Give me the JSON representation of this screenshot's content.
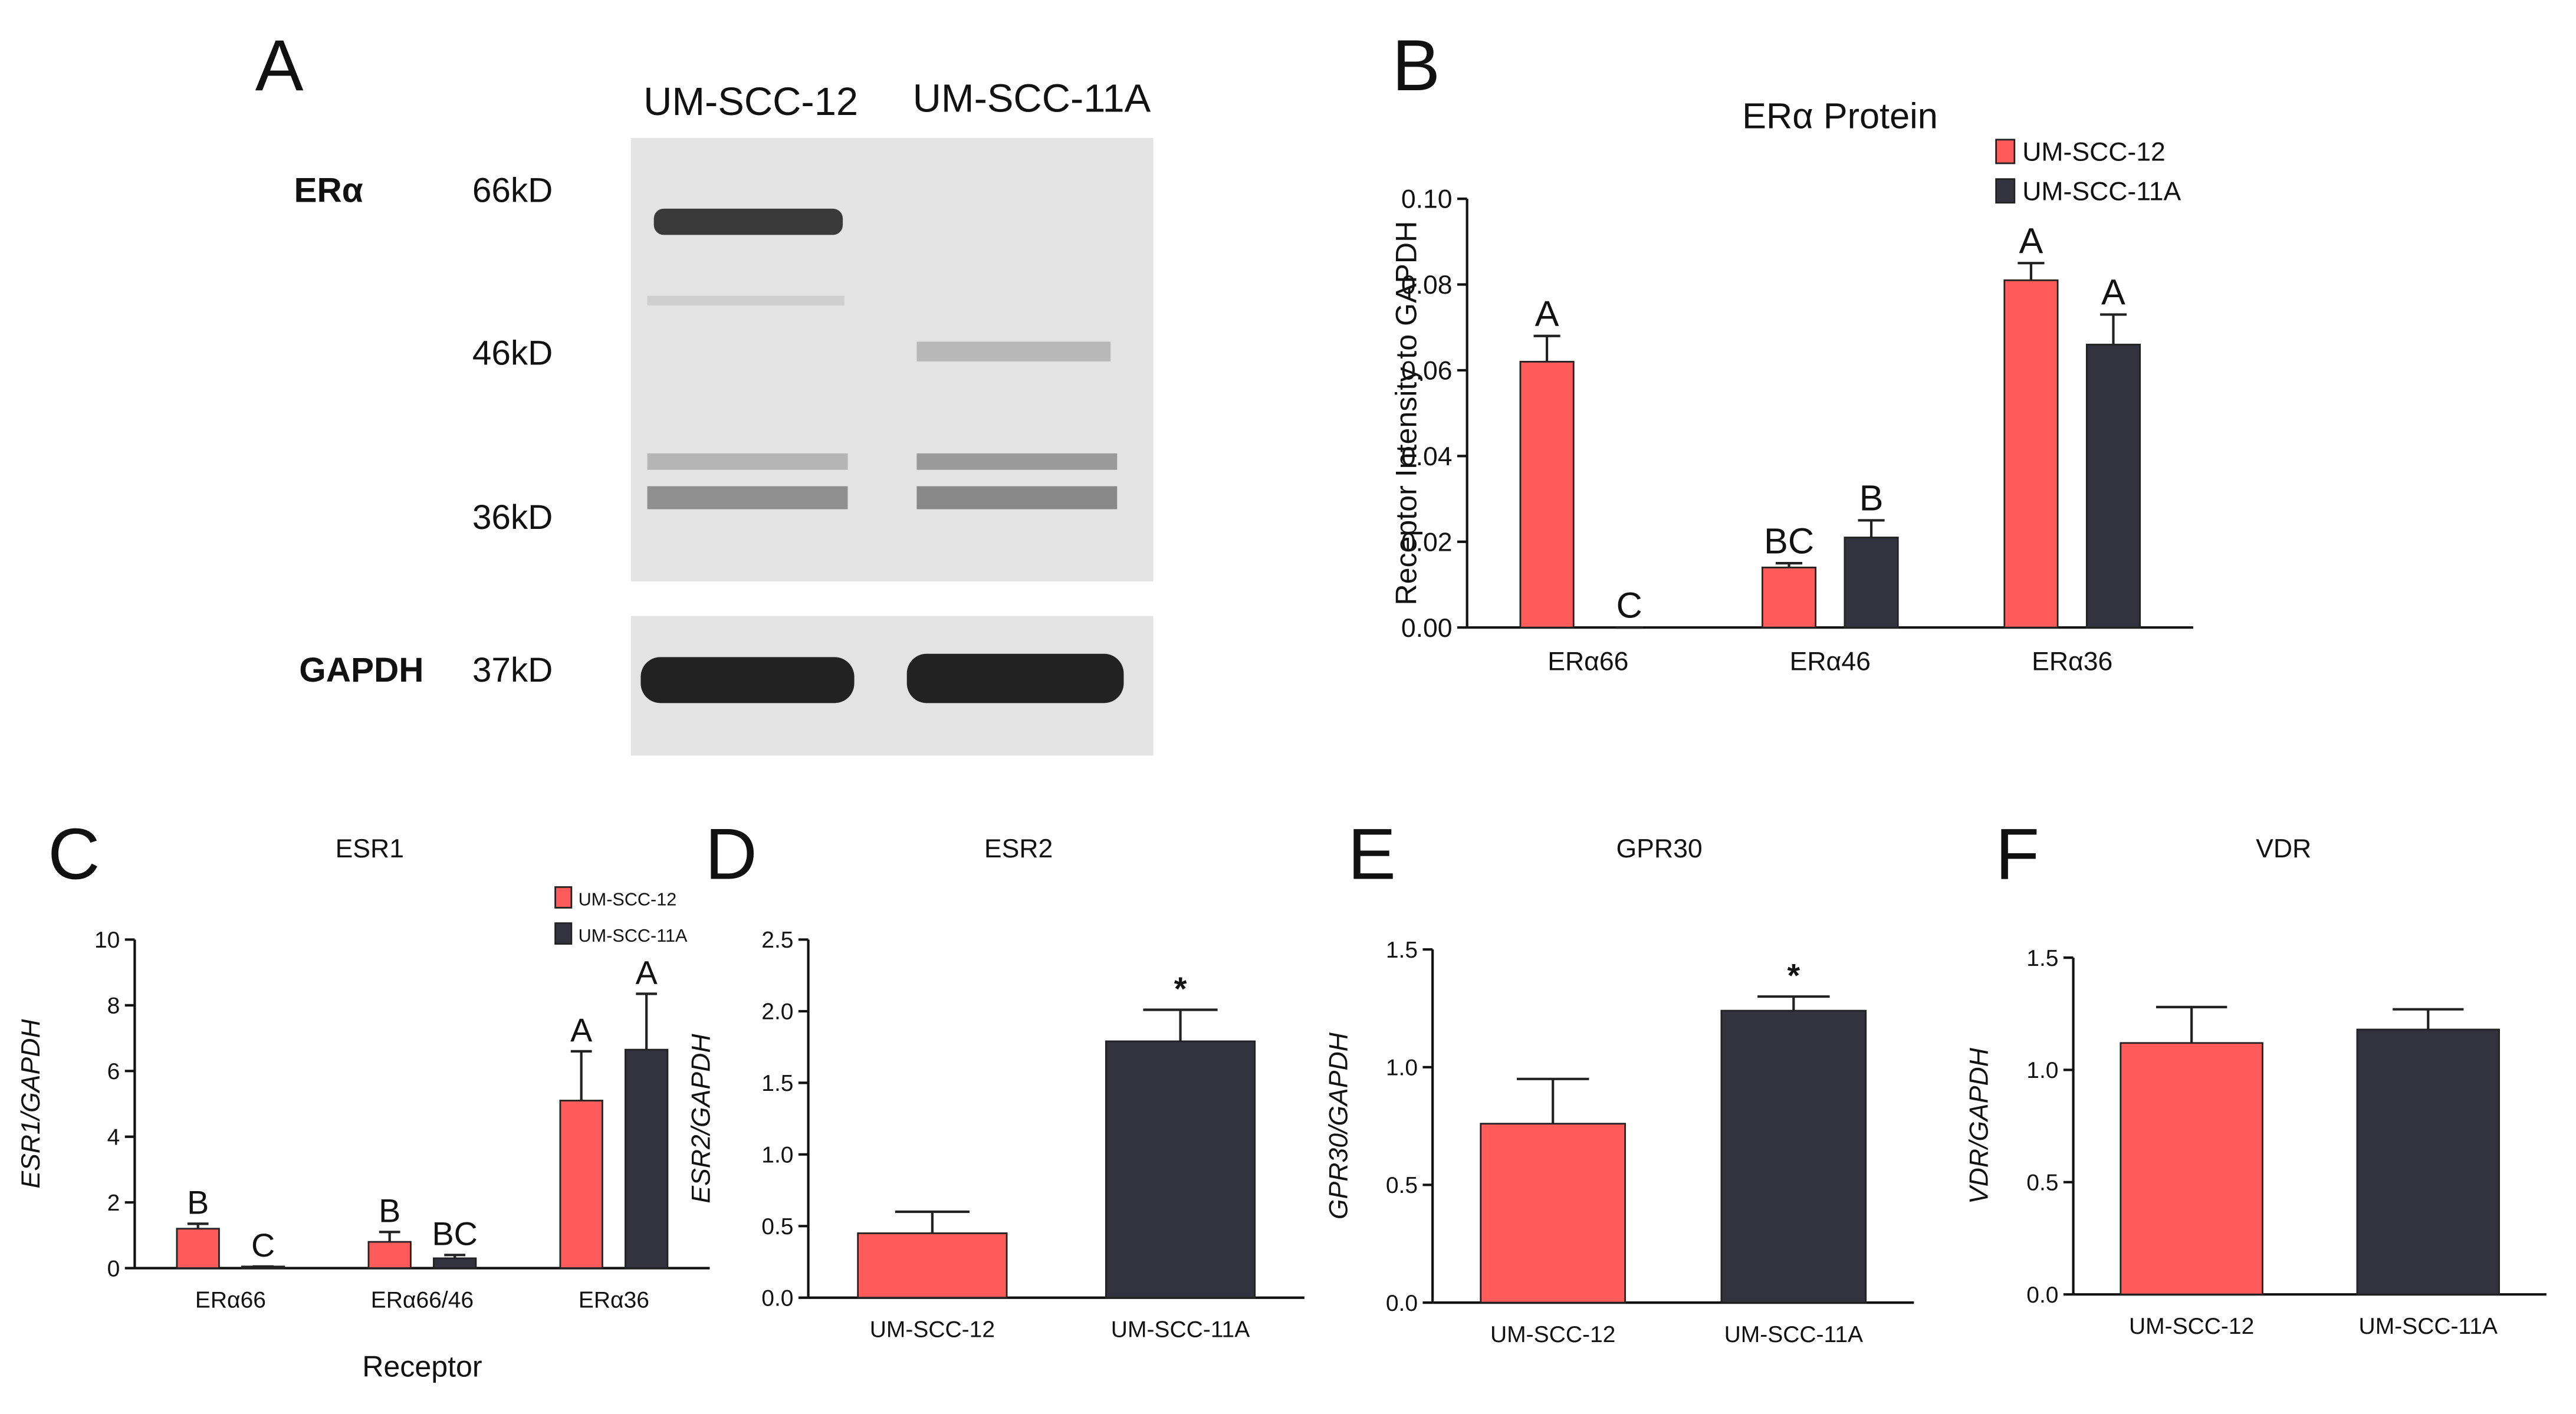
{
  "blot": {
    "panel": "A",
    "lanes": [
      "UM-SCC-12",
      "UM-SCC-11A"
    ],
    "rows": [
      {
        "label": "ERα",
        "markers": [
          "66kD",
          "46kD",
          "36kD"
        ]
      },
      {
        "label": "GAPDH",
        "markers": [
          "37kD"
        ]
      }
    ]
  },
  "chart_data": [
    {
      "type": "grouped_bar",
      "panel": "B",
      "title": "ERα Protein",
      "ylabel": "Receptor Intensity to GAPDH",
      "categories": [
        "ERα66",
        "ERα46",
        "ERα36"
      ],
      "series": [
        {
          "name": "UM-SCC-12",
          "color": "#ff5b5b",
          "values": [
            0.062,
            0.014,
            0.081
          ],
          "errors": [
            0.006,
            0.001,
            0.004
          ],
          "annotations": [
            "A",
            "BC",
            "A"
          ]
        },
        {
          "name": "UM-SCC-11A",
          "color": "#33333f",
          "values": [
            0,
            0.021,
            0.066
          ],
          "errors": [
            0,
            0.004,
            0.007
          ],
          "annotations": [
            "C",
            "B",
            "A"
          ]
        }
      ],
      "ylim": [
        0,
        0.1
      ],
      "yticks": [
        {
          "value": 0,
          "label": "0.00"
        },
        {
          "value": 0.02,
          "label": "0.02"
        },
        {
          "value": 0.04,
          "label": "0.04"
        },
        {
          "value": 0.06,
          "label": "0.06"
        },
        {
          "value": 0.08,
          "label": "0.08"
        },
        {
          "value": 0.1,
          "label": "0.10"
        }
      ],
      "legend": "top-right"
    },
    {
      "type": "grouped_bar",
      "panel": "C",
      "title": "ESR1",
      "ylabel": "ESR1/GAPDH",
      "xlabel": "Receptor",
      "categories": [
        "ERα66",
        "ERα66/46",
        "ERα36"
      ],
      "series": [
        {
          "name": "UM-SCC-12",
          "color": "#ff5b5b",
          "values": [
            1.2,
            0.8,
            5.1
          ],
          "errors": [
            0.15,
            0.3,
            1.5
          ],
          "annotations": [
            "B",
            "B",
            "A"
          ]
        },
        {
          "name": "UM-SCC-11A",
          "color": "#33333f",
          "values": [
            0.05,
            0.3,
            6.65
          ],
          "errors": [
            0,
            0.1,
            1.7
          ],
          "annotations": [
            "C",
            "BC",
            "A"
          ]
        }
      ],
      "ylim": [
        0,
        10
      ],
      "yticks": [
        0,
        2,
        4,
        6,
        8,
        10
      ],
      "legend": "top-right"
    },
    {
      "type": "bar",
      "panel": "D",
      "title": "ESR2",
      "ylabel": "ESR2/GAPDH",
      "categories": [
        "UM-SCC-12",
        "UM-SCC-11A"
      ],
      "values": [
        0.45,
        1.79
      ],
      "errors": [
        0.15,
        0.22
      ],
      "colors": [
        "#ff5b5b",
        "#33333f"
      ],
      "annotations": [
        null,
        "*"
      ],
      "ylim": [
        0,
        2.5
      ],
      "yticks": [
        {
          "value": 0,
          "label": "0.0"
        },
        {
          "value": 0.5,
          "label": "0.5"
        },
        {
          "value": 1,
          "label": "1.0"
        },
        {
          "value": 1.5,
          "label": "1.5"
        },
        {
          "value": 2,
          "label": "2.0"
        },
        {
          "value": 2.5,
          "label": "2.5"
        }
      ]
    },
    {
      "type": "bar",
      "panel": "E",
      "title": "GPR30",
      "ylabel": "GPR30/GAPDH",
      "categories": [
        "UM-SCC-12",
        "UM-SCC-11A"
      ],
      "values": [
        0.76,
        1.24
      ],
      "errors": [
        0.19,
        0.06
      ],
      "colors": [
        "#ff5b5b",
        "#33333f"
      ],
      "annotations": [
        null,
        "*"
      ],
      "ylim": [
        0,
        1.5
      ],
      "yticks": [
        {
          "value": 0,
          "label": "0.0"
        },
        {
          "value": 0.5,
          "label": "0.5"
        },
        {
          "value": 1,
          "label": "1.0"
        },
        {
          "value": 1.5,
          "label": "1.5"
        }
      ]
    },
    {
      "type": "bar",
      "panel": "F",
      "title": "VDR",
      "ylabel": "VDR/GAPDH",
      "categories": [
        "UM-SCC-12",
        "UM-SCC-11A"
      ],
      "values": [
        1.12,
        1.18
      ],
      "errors": [
        0.16,
        0.09
      ],
      "colors": [
        "#ff5b5b",
        "#33333f"
      ],
      "ylim": [
        0,
        1.5
      ],
      "yticks": [
        {
          "value": 0,
          "label": "0.0"
        },
        {
          "value": 0.5,
          "label": "0.5"
        },
        {
          "value": 1,
          "label": "1.0"
        },
        {
          "value": 1.5,
          "label": "1.5"
        }
      ]
    }
  ]
}
